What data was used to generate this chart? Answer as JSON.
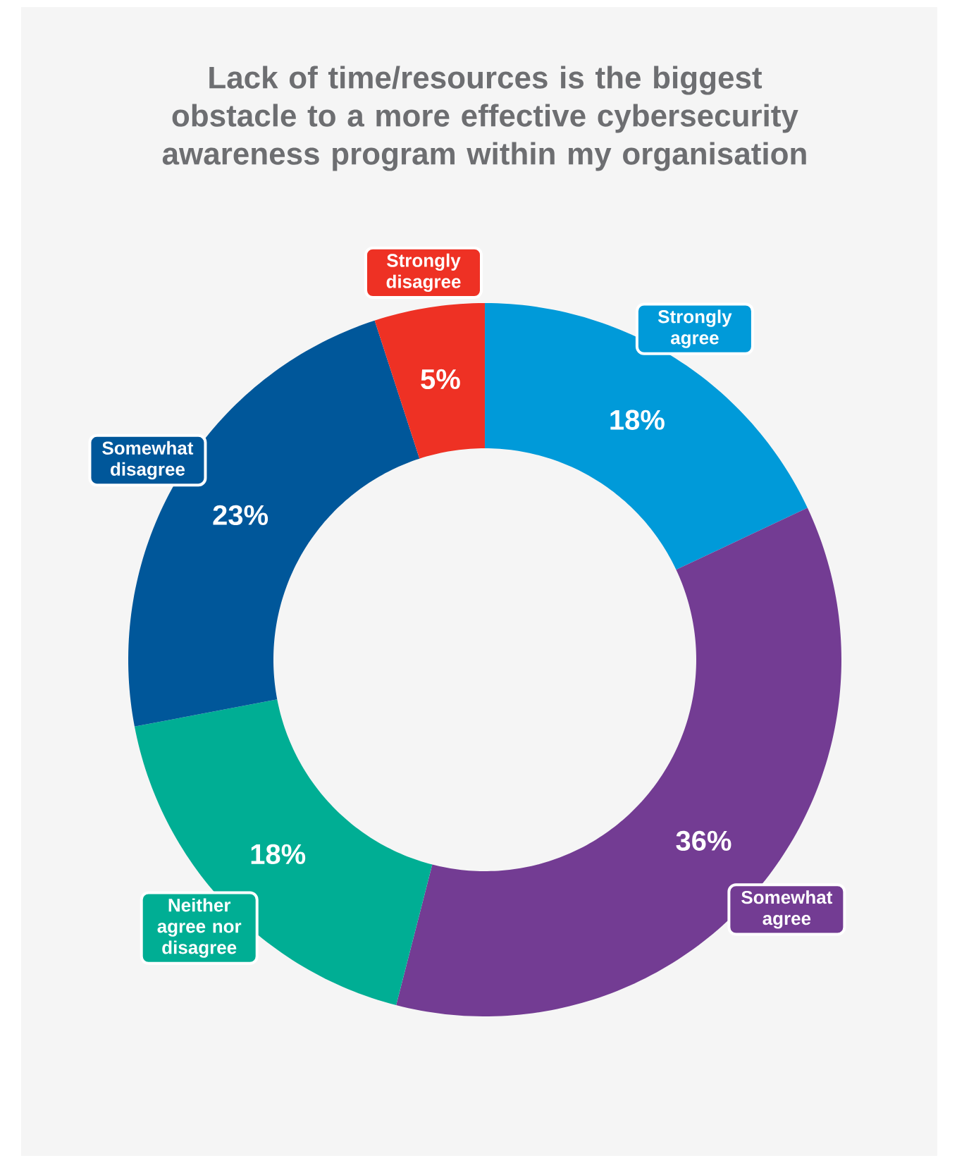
{
  "chart_data": {
    "type": "donut",
    "title": "Lack of time/resources is the biggest obstacle to a more effective cybersecurity awareness program within my organisation",
    "categories": [
      "Strongly agree",
      "Somewhat agree",
      "Neither agree nor disagree",
      "Somewhat disagree",
      "Strongly disagree"
    ],
    "values": [
      18,
      36,
      18,
      23,
      5
    ],
    "value_labels": [
      "18%",
      "36%",
      "18%",
      "23%",
      "5%"
    ],
    "colors": [
      "#009ad9",
      "#733c93",
      "#00ae94",
      "#00579a",
      "#ee3124"
    ]
  }
}
